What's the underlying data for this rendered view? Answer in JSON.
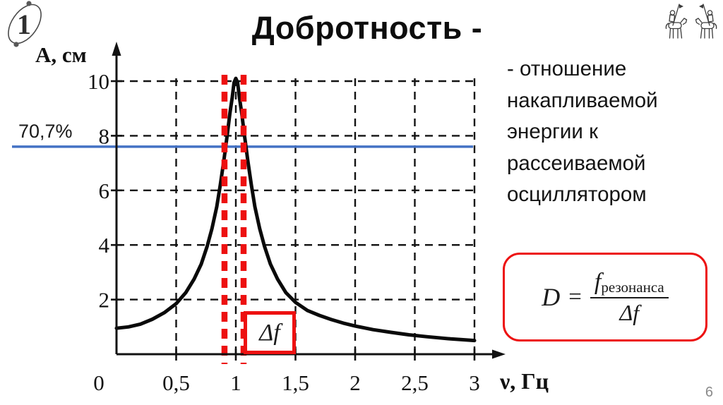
{
  "slide": {
    "title": "Добротность -",
    "page_number": "6",
    "badge_number": "1",
    "definition_lines": [
      "- отношение",
      "накапливаемой",
      "энергии к",
      "рассеиваемой",
      "осциллятором"
    ],
    "formula": {
      "lhs": "D",
      "equals": "=",
      "numerator_base": "f",
      "numerator_subscript": "резонанса",
      "denominator": "Δf"
    }
  },
  "chart_data": {
    "type": "line",
    "title": "",
    "xlabel": "ν, Гц",
    "ylabel": "А, см",
    "xlim": [
      0,
      3
    ],
    "ylim": [
      0,
      10.5
    ],
    "xtick_values": [
      0,
      0.5,
      1,
      1.5,
      2,
      2.5,
      3
    ],
    "xtick_labels": [
      "0",
      "0,5",
      "1",
      "1,5",
      "2",
      "2,5",
      "3"
    ],
    "ytick_values": [
      2,
      4,
      6,
      8,
      10
    ],
    "ytick_labels": [
      "2",
      "4",
      "6",
      "8",
      "10"
    ],
    "grid": "dashed-black",
    "legend": "none",
    "series": [
      {
        "name": "resonance-amplitude-curve",
        "color": "#0a0a0a",
        "points": [
          [
            0,
            0.95
          ],
          [
            0.1,
            1.0
          ],
          [
            0.2,
            1.1
          ],
          [
            0.3,
            1.28
          ],
          [
            0.4,
            1.52
          ],
          [
            0.5,
            1.85
          ],
          [
            0.58,
            2.25
          ],
          [
            0.65,
            2.75
          ],
          [
            0.71,
            3.3
          ],
          [
            0.76,
            3.95
          ],
          [
            0.8,
            4.6
          ],
          [
            0.84,
            5.4
          ],
          [
            0.87,
            6.2
          ],
          [
            0.9,
            7.1
          ],
          [
            0.93,
            8.1
          ],
          [
            0.95,
            8.8
          ],
          [
            0.97,
            9.4
          ],
          [
            0.985,
            9.95
          ],
          [
            1.0,
            10.1
          ],
          [
            1.015,
            9.95
          ],
          [
            1.03,
            9.4
          ],
          [
            1.05,
            8.8
          ],
          [
            1.07,
            8.1
          ],
          [
            1.1,
            7.1
          ],
          [
            1.13,
            6.2
          ],
          [
            1.16,
            5.4
          ],
          [
            1.2,
            4.6
          ],
          [
            1.24,
            3.95
          ],
          [
            1.29,
            3.3
          ],
          [
            1.35,
            2.75
          ],
          [
            1.42,
            2.25
          ],
          [
            1.5,
            1.9
          ],
          [
            1.6,
            1.6
          ],
          [
            1.7,
            1.42
          ],
          [
            1.8,
            1.27
          ],
          [
            1.9,
            1.14
          ],
          [
            2.0,
            1.03
          ],
          [
            2.15,
            0.9
          ],
          [
            2.3,
            0.8
          ],
          [
            2.45,
            0.71
          ],
          [
            2.6,
            0.64
          ],
          [
            2.8,
            0.56
          ],
          [
            3.0,
            0.5
          ]
        ]
      }
    ],
    "annotations": {
      "half_power_level": {
        "label": "70,7%",
        "value": 7.6,
        "color": "#4472C4"
      },
      "bandwidth_lines": {
        "x_values": [
          0.905,
          1.065
        ],
        "color": "#ED1111"
      },
      "bandwidth_label": {
        "text": "Δf"
      }
    }
  },
  "colors": {
    "accent_blue": "#4472C4",
    "annotation_red": "#ED1111",
    "ink": "#111111",
    "page_number_gray": "#8a8a8a"
  }
}
